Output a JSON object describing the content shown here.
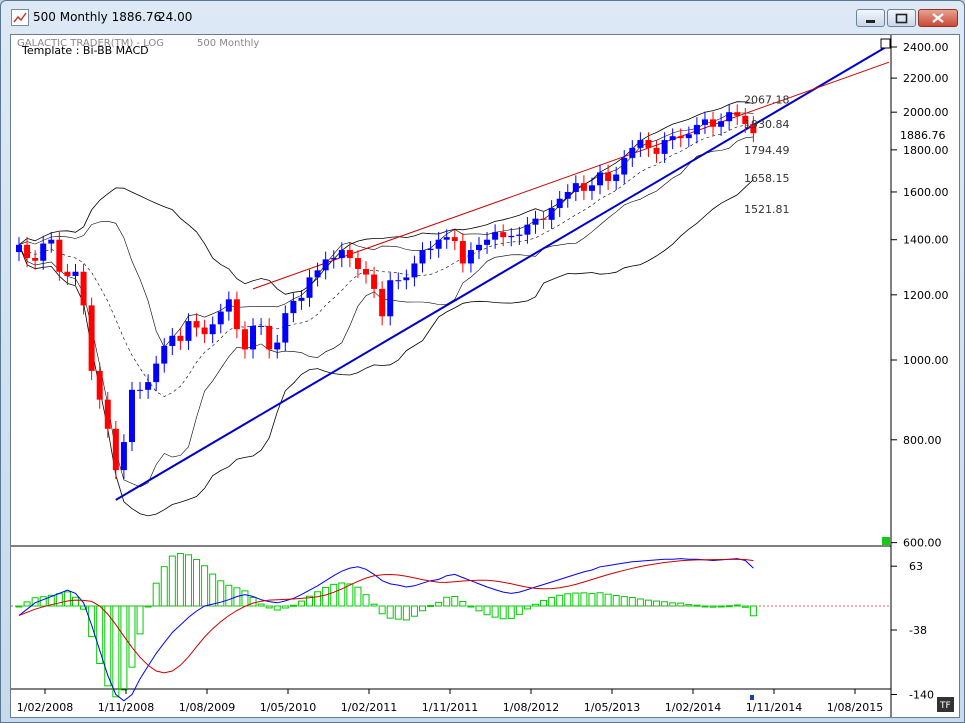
{
  "window": {
    "title": "500 Monthly 1886.76",
    "title_value": "24.00",
    "icons": [
      "chart-app-icon",
      "minimize-icon",
      "restore-icon",
      "close-icon"
    ]
  },
  "chart_header": {
    "line1": "GALACTIC TRADER(TM) - LOG",
    "line1_right": "500 Monthly",
    "line2": "Template : Bi-BB MACD",
    "last_price_label": "1886.76",
    "tf_button": "TF"
  },
  "colors": {
    "up_candle": "#0000ff",
    "down_candle": "#ff0000",
    "trendline_blue": "#0000cc",
    "trendline_red": "#cc0000",
    "histogram": "#00cc00",
    "bands": "#000000",
    "macd_line": "#0000ff",
    "signal_line": "#cc0000"
  },
  "chart_data": [
    {
      "type": "candlestick",
      "scale": "log",
      "ylim": [
        600,
        2500
      ],
      "price_ticks": [
        "2400.00",
        "2200.00",
        "2000.00",
        "1800.00",
        "1600.00",
        "1400.00",
        "1200.00",
        "1000.00",
        "800.00",
        "600.00"
      ],
      "x_ticks": [
        "1/02/2008",
        "1/11/2008",
        "1/08/2009",
        "1/05/2010",
        "1/02/2011",
        "1/11/2011",
        "1/08/2012",
        "1/05/2013",
        "1/02/2014",
        "1/11/2014",
        "1/08/2015"
      ],
      "band_labels": [
        "2067.18",
        "1930.84",
        "1794.49",
        "1658.15",
        "1521.81"
      ],
      "last_close": 1886.76,
      "closes": [
        1380,
        1330,
        1320,
        1385,
        1400,
        1280,
        1265,
        1280,
        1165,
        970,
        895,
        825,
        735,
        795,
        920,
        920,
        940,
        990,
        1040,
        1070,
        1055,
        1115,
        1095,
        1075,
        1105,
        1145,
        1185,
        1090,
        1030,
        1100,
        1100,
        1030,
        1050,
        1140,
        1180,
        1190,
        1260,
        1285,
        1325,
        1330,
        1360,
        1330,
        1290,
        1270,
        1220,
        1130,
        1250,
        1250,
        1260,
        1310,
        1360,
        1365,
        1400,
        1410,
        1395,
        1310,
        1360,
        1380,
        1400,
        1430,
        1410,
        1415,
        1420,
        1460,
        1485,
        1480,
        1530,
        1570,
        1600,
        1640,
        1605,
        1630,
        1690,
        1650,
        1680,
        1760,
        1810,
        1850,
        1810,
        1780,
        1850,
        1870,
        1860,
        1880,
        1930,
        1960,
        1920,
        1950,
        2000,
        1980,
        1935,
        1886
      ]
    },
    {
      "type": "macd",
      "y_ticks": [
        "63",
        "-38",
        "-140"
      ],
      "macd": [
        -15,
        -5,
        5,
        10,
        15,
        20,
        25,
        20,
        5,
        -30,
        -70,
        -110,
        -140,
        -150,
        -140,
        -115,
        -95,
        -75,
        -58,
        -42,
        -30,
        -18,
        -8,
        0,
        3,
        6,
        10,
        15,
        18,
        15,
        10,
        7,
        5,
        8,
        12,
        18,
        25,
        32,
        40,
        48,
        55,
        60,
        62,
        58,
        50,
        40,
        35,
        33,
        30,
        32,
        36,
        40,
        42,
        48,
        50,
        45,
        40,
        35,
        30,
        26,
        22,
        20,
        22,
        26,
        30,
        34,
        38,
        42,
        46,
        50,
        54,
        57,
        62,
        64,
        66,
        68,
        70,
        71,
        72,
        73,
        74,
        74,
        75,
        74,
        74,
        73,
        72,
        73,
        74,
        75,
        72,
        60
      ]
    }
  ]
}
